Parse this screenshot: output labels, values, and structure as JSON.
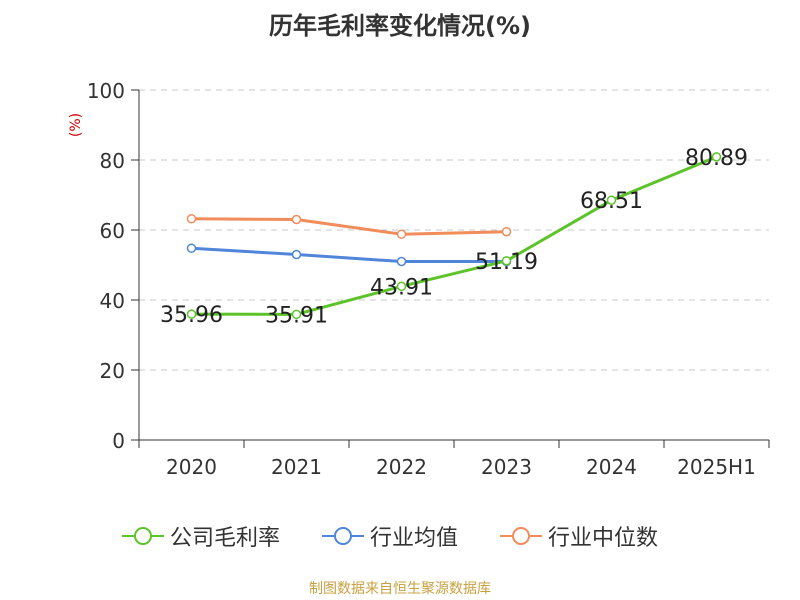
{
  "chart_data": {
    "type": "line",
    "title": "历年毛利率变化情况(%)",
    "ylabel": "(%)",
    "ylim": [
      0,
      100
    ],
    "yticks": [
      0,
      20,
      40,
      60,
      80,
      100
    ],
    "categories": [
      "2020",
      "2021",
      "2022",
      "2023",
      "2024",
      "2025H1"
    ],
    "grid": true,
    "legend_position": "bottom",
    "series": [
      {
        "name": "公司毛利率",
        "color": "#5cc42a",
        "values": [
          35.96,
          35.91,
          43.91,
          51.19,
          68.51,
          80.89
        ],
        "labels": [
          "35.96",
          "35.91",
          "43.91",
          "51.19",
          "68.51",
          "80.89"
        ]
      },
      {
        "name": "行业均值",
        "color": "#4f86d9",
        "values": [
          54.8,
          53.0,
          51.0,
          51.0,
          null,
          null
        ]
      },
      {
        "name": "行业中位数",
        "color": "#f28c5a",
        "values": [
          63.2,
          63.0,
          58.8,
          59.5,
          null,
          null
        ]
      }
    ]
  },
  "source": "制图数据来自恒生聚源数据库"
}
